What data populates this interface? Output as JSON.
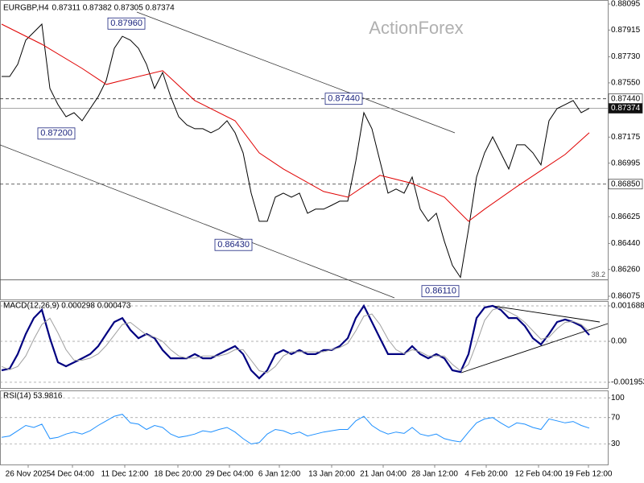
{
  "chart_data": [
    {
      "type": "line",
      "title": "EURGBP,H4",
      "subtitle": "0.87311 0.87382 0.87305 0.87374",
      "watermark": "ActionForex",
      "xlim": [
        0,
        75
      ],
      "ylim": [
        0.86075,
        0.88095
      ],
      "xticks": [
        {
          "value": 3.3,
          "label": "26 Nov 2025"
        },
        {
          "value": 8.8,
          "label": "4 Dec 04:00"
        },
        {
          "value": 15.3,
          "label": "11 Dec 12:00"
        },
        {
          "value": 21.9,
          "label": "18 Dec 20:00"
        },
        {
          "value": 28.3,
          "label": "29 Dec 04:00"
        },
        {
          "value": 34.5,
          "label": "6 Jan 12:00"
        },
        {
          "value": 41,
          "label": "13 Jan 20:00"
        },
        {
          "value": 47.4,
          "label": "21 Jan 04:00"
        },
        {
          "value": 53.8,
          "label": "28 Jan 12:00"
        },
        {
          "value": 60.2,
          "label": "4 Feb 20:00"
        },
        {
          "value": 66.7,
          "label": "12 Feb 04:00"
        },
        {
          "value": 72.9,
          "label": "19 Feb 12:00"
        }
      ],
      "yticks": [
        0.88095,
        0.87915,
        {
          "value": 0.8773,
          "label": "0.87730"
        },
        {
          "value": 0.8755,
          "label": "0.87550"
        },
        0.87175,
        0.86995,
        0.86625,
        {
          "value": 0.8644,
          "label": "0.86440"
        },
        {
          "value": 0.8626,
          "label": "0.86260"
        },
        0.86075
      ],
      "grid": false,
      "series": [
        {
          "color": "#000000",
          "values": [
            0.87594,
            0.87594,
            0.87678,
            0.87845,
            0.879,
            0.87956,
            0.87511,
            0.874,
            0.87316,
            0.87344,
            0.87288,
            0.87372,
            0.87455,
            0.87567,
            0.87789,
            0.87872,
            0.87845,
            0.87789,
            0.87678,
            0.87511,
            0.87622,
            0.87455,
            0.87316,
            0.8726,
            0.87233,
            0.87233,
            0.87205,
            0.87233,
            0.87288,
            0.87205,
            0.87066,
            0.86788,
            0.86593,
            0.86593,
            0.8676,
            0.86788,
            0.8676,
            0.86788,
            0.86649,
            0.86677,
            0.86677,
            0.86704,
            0.86732,
            0.86732,
            0.8701,
            0.87344,
            0.87233,
            0.8701,
            0.86788,
            0.86816,
            0.86788,
            0.86899,
            0.86677,
            0.86593,
            0.86649,
            0.86455,
            0.86288,
            0.86205,
            0.86538,
            0.86899,
            0.87066,
            0.87177,
            0.87066,
            0.86955,
            0.87122,
            0.87122,
            0.87066,
            0.86983,
            0.87288,
            0.87372,
            0.874,
            0.87428,
            0.87344,
            0.87374
          ]
        },
        {
          "color": "#e00000",
          "x": [
            0,
            5,
            10,
            13,
            15,
            20,
            24,
            29,
            32,
            35,
            40,
            43,
            47,
            51,
            55,
            58,
            60,
            64,
            67,
            70,
            73
          ],
          "values": [
            0.87956,
            0.87817,
            0.8765,
            0.87539,
            0.87567,
            0.87634,
            0.87428,
            0.87288,
            0.87066,
            0.86955,
            0.86799,
            0.8676,
            0.86911,
            0.86855,
            0.8676,
            0.86593,
            0.86677,
            0.86833,
            0.86944,
            0.87055,
            0.87205
          ]
        }
      ],
      "levels": [
        {
          "value": 0.8744,
          "label": "0.87440",
          "style": "dashed"
        },
        {
          "value": 0.87374,
          "label": "0.87374",
          "style": "solid"
        },
        {
          "value": 0.8685,
          "label": "0.86850",
          "style": "dashed"
        }
      ],
      "fib": {
        "value": 0.86188,
        "label": "38.2"
      },
      "annotations": [
        {
          "x": 17.8,
          "value": 0.8796,
          "label": "0.87960"
        },
        {
          "x": 9.1,
          "value": 0.872,
          "label": "0.87200"
        },
        {
          "x": 31.1,
          "value": 0.8643,
          "label": "0.86430"
        },
        {
          "x": 44.8,
          "value": 0.8744,
          "label": "0.87440"
        },
        {
          "x": 56.8,
          "value": 0.8611,
          "label": "0.86110"
        }
      ]
    },
    {
      "type": "line",
      "title": "MACD(12,26,9) 0.000298 0.000473",
      "xlim": [
        0,
        75
      ],
      "ylim": [
        -0.002225,
        0.001918
      ],
      "grid": true,
      "yticks": [
        0.001688,
        {
          "value": 0,
          "label": "0.00"
        },
        -0.001953
      ],
      "series": [
        {
          "color": "#000080",
          "values": [
            -0.00138,
            -0.0013,
            -0.00061,
            0.00035,
            0.00111,
            0.0015,
            0.00015,
            -0.001,
            -0.00119,
            -0.001,
            -0.00081,
            -0.00061,
            -0.00023,
            0.00035,
            0.00092,
            0.00111,
            0.00054,
            0.00015,
            0.00035,
            0.00015,
            -0.00042,
            -0.00081,
            -0.00081,
            -0.00081,
            -0.00061,
            -0.00081,
            -0.00081,
            -0.00061,
            -0.00042,
            -0.00023,
            -0.00061,
            -0.00138,
            -0.00176,
            -0.00138,
            -0.00061,
            -0.00042,
            -0.00061,
            -0.00042,
            -0.00061,
            -0.00061,
            -0.00042,
            -0.00042,
            -0.00023,
            0.00015,
            0.00111,
            0.00169,
            0.00092,
            0.00015,
            -0.00061,
            -0.00061,
            -0.00061,
            -0.00023,
            -0.00061,
            -0.00081,
            -0.00061,
            -0.00081,
            -0.00138,
            -0.00146,
            -0.00061,
            0.00111,
            0.00161,
            0.00169,
            0.0015,
            0.00111,
            0.00111,
            0.00073,
            0.00015,
            -0.00015,
            0.00035,
            0.00092,
            0.00104,
            0.00092,
            0.00073,
            0.000298
          ]
        },
        {
          "color": "#a0a0a0",
          "values": [
            -0.0012,
            -0.00135,
            -0.0012,
            -0.0007,
            0.0001,
            0.0008,
            0.0011,
            0.0004,
            -0.0004,
            -0.0009,
            -0.0009,
            -0.0008,
            -0.0006,
            -0.0002,
            0.0003,
            0.0008,
            0.0009,
            0.0006,
            0.0003,
            0.0002,
            0,
            -0.0004,
            -0.0007,
            -0.0008,
            -0.0008,
            -0.0007,
            -0.0007,
            -0.0007,
            -0.0006,
            -0.0004,
            -0.0004,
            -0.0009,
            -0.0014,
            -0.0015,
            -0.0012,
            -0.0007,
            -0.0005,
            -0.0005,
            -0.0005,
            -0.0005,
            -0.0005,
            -0.0004,
            -0.0003,
            -0.0001,
            0.0005,
            0.0012,
            0.0013,
            0.0008,
            0.0001,
            -0.0004,
            -0.0006,
            -0.0004,
            -0.0005,
            -0.0007,
            -0.0007,
            -0.0007,
            -0.0011,
            -0.0014,
            -0.0011,
            -0.0001,
            0.001,
            0.0015,
            0.0016,
            0.0014,
            0.0012,
            0.0009,
            0.0005,
            0.0001,
            0.0002,
            0.0006,
            0.0009,
            0.00095,
            0.0008,
            0.000473
          ]
        }
      ]
    },
    {
      "type": "line",
      "title": "RSI(14) 53.9816",
      "xlim": [
        0,
        75
      ],
      "ylim": [
        0,
        110
      ],
      "grid": true,
      "yticks": [
        100,
        70,
        30
      ],
      "series": [
        {
          "color": "#1e90ff",
          "values": [
            40,
            42,
            50,
            58,
            55,
            60,
            38,
            40,
            45,
            48,
            45,
            50,
            58,
            65,
            72,
            75,
            62,
            60,
            52,
            58,
            55,
            45,
            40,
            42,
            45,
            50,
            48,
            52,
            55,
            48,
            38,
            30,
            32,
            45,
            52,
            50,
            45,
            48,
            42,
            45,
            48,
            50,
            52,
            52,
            65,
            72,
            58,
            50,
            45,
            48,
            46,
            55,
            45,
            42,
            45,
            38,
            35,
            33,
            48,
            62,
            68,
            70,
            62,
            55,
            62,
            60,
            55,
            52,
            68,
            65,
            62,
            64,
            58,
            53.9816
          ]
        }
      ]
    }
  ]
}
